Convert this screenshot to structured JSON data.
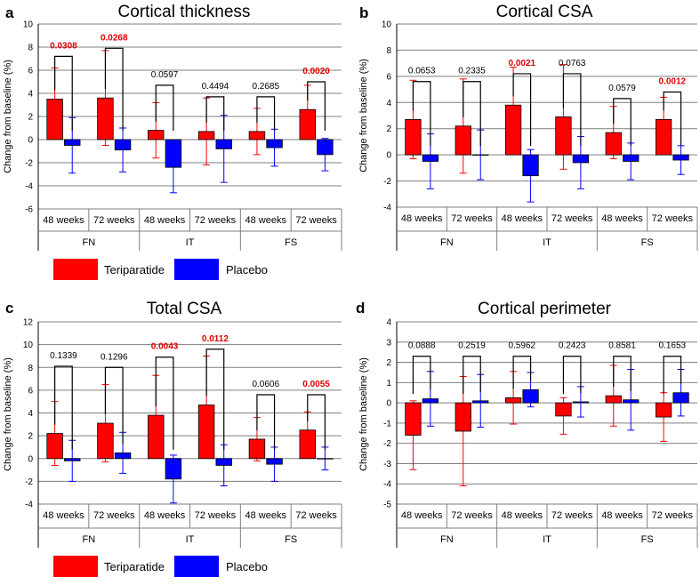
{
  "colors": {
    "teriparatide": "#ff0000",
    "placebo": "#0000ff",
    "significant_p": "#e00000",
    "grid": "#7f7f7f"
  },
  "legend": {
    "teriparatide": "Teriparatide",
    "placebo": "Placebo"
  },
  "chart_data": [
    {
      "panel": "a",
      "type": "bar",
      "title": "Cortical thickness",
      "ylabel": "Change from baseline (%)",
      "ylim": [
        -6,
        10
      ],
      "ystep": 2,
      "yticks": [
        "-6",
        "-4",
        "-2",
        "0",
        "2",
        "4",
        "6",
        "8",
        "10"
      ],
      "categories": [
        "48 weeks",
        "72 weeks",
        "48 weeks",
        "72 weeks",
        "48 weeks",
        "72 weeks"
      ],
      "groups": [
        "FN",
        "IT",
        "FS"
      ],
      "series": [
        {
          "name": "Teriparatide",
          "values": [
            3.5,
            3.6,
            0.8,
            0.7,
            0.7,
            2.6
          ],
          "err": [
            2.7,
            4.1,
            2.4,
            2.9,
            2.0,
            2.1
          ]
        },
        {
          "name": "Placebo",
          "values": [
            -0.5,
            -0.9,
            -2.4,
            -0.8,
            -0.7,
            -1.3
          ],
          "err": [
            2.4,
            1.9,
            2.2,
            2.9,
            1.6,
            1.4
          ]
        }
      ],
      "p_values": [
        "0.0308",
        "0.0268",
        "0.0597",
        "0.4494",
        "0.2685",
        "0.0020"
      ],
      "significant": [
        true,
        true,
        false,
        false,
        false,
        true
      ],
      "bracket_top": [
        7.2,
        7.9,
        4.7,
        3.7,
        3.7,
        5.0
      ]
    },
    {
      "panel": "b",
      "type": "bar",
      "title": "Cortical CSA",
      "ylabel": "Change from baseline (%)",
      "ylim": [
        -4,
        10
      ],
      "ystep": 2,
      "yticks": [
        "-4",
        "-2",
        "0",
        "2",
        "4",
        "6",
        "8",
        "10"
      ],
      "categories": [
        "48 weeks",
        "72 weeks",
        "48 weeks",
        "72 weeks",
        "48 weeks",
        "72 weeks"
      ],
      "groups": [
        "FN",
        "IT",
        "FS"
      ],
      "series": [
        {
          "name": "Teriparatide",
          "values": [
            2.7,
            2.2,
            3.8,
            2.9,
            1.7,
            2.7
          ],
          "err": [
            3.0,
            3.6,
            2.9,
            4.0,
            2.0,
            1.7
          ]
        },
        {
          "name": "Placebo",
          "values": [
            -0.5,
            0.0,
            -1.6,
            -0.6,
            -0.5,
            -0.4
          ],
          "err": [
            2.1,
            1.9,
            2.0,
            2.0,
            1.4,
            1.1
          ]
        }
      ],
      "p_values": [
        "0.0653",
        "0.2335",
        "0.0021",
        "0.0763",
        "0.0579",
        "0.0012"
      ],
      "significant": [
        false,
        false,
        true,
        false,
        false,
        true
      ],
      "bracket_top": [
        5.6,
        5.6,
        6.2,
        6.2,
        4.3,
        4.8
      ]
    },
    {
      "panel": "c",
      "type": "bar",
      "title": "Total CSA",
      "ylabel": "Change from baseline (%)",
      "ylim": [
        -4,
        12
      ],
      "ystep": 2,
      "yticks": [
        "-4",
        "-2",
        "0",
        "2",
        "4",
        "6",
        "8",
        "10",
        "12"
      ],
      "categories": [
        "48 weeks",
        "72 weeks",
        "48 weeks",
        "72 weeks",
        "48 weeks",
        "72 weeks"
      ],
      "groups": [
        "FN",
        "IT",
        "FS"
      ],
      "series": [
        {
          "name": "Teriparatide",
          "values": [
            2.2,
            3.1,
            3.8,
            4.7,
            1.7,
            2.5
          ],
          "err": [
            2.8,
            3.4,
            3.5,
            4.3,
            1.9,
            1.6
          ]
        },
        {
          "name": "Placebo",
          "values": [
            -0.2,
            0.5,
            -1.8,
            -0.6,
            -0.5,
            0.0
          ],
          "err": [
            1.8,
            1.8,
            2.1,
            1.8,
            1.5,
            1.0
          ]
        }
      ],
      "p_values": [
        "0.1339",
        "0.1296",
        "0.0043",
        "0.0112",
        "0.0606",
        "0.0055"
      ],
      "significant": [
        false,
        false,
        true,
        true,
        false,
        true
      ],
      "bracket_top": [
        8.1,
        8.0,
        8.9,
        9.6,
        5.6,
        5.6
      ]
    },
    {
      "panel": "d",
      "type": "bar",
      "title": "Cortical perimeter",
      "ylabel": "Change from baseline (%)",
      "ylim": [
        -5,
        4
      ],
      "ystep": 1,
      "yticks": [
        "-5",
        "-4",
        "-3",
        "-2",
        "-1",
        "0",
        "1",
        "2",
        "3",
        "4"
      ],
      "categories": [
        "48 weeks",
        "72 weeks",
        "48 weeks",
        "72 weeks",
        "48 weeks",
        "72 weeks"
      ],
      "groups": [
        "FN",
        "IT",
        "FS"
      ],
      "series": [
        {
          "name": "Teriparatide",
          "values": [
            -1.6,
            -1.4,
            0.25,
            -0.65,
            0.35,
            -0.7
          ],
          "err": [
            1.7,
            2.7,
            1.3,
            0.9,
            1.5,
            1.2
          ]
        },
        {
          "name": "Placebo",
          "values": [
            0.2,
            0.1,
            0.65,
            0.05,
            0.15,
            0.5
          ],
          "err": [
            1.35,
            1.3,
            0.85,
            0.75,
            1.5,
            1.15
          ]
        }
      ],
      "p_values": [
        "0.0888",
        "0.2519",
        "0.5962",
        "0.2423",
        "0.8581",
        "0.1653"
      ],
      "significant": [
        false,
        false,
        false,
        false,
        false,
        false
      ],
      "bracket_top": [
        2.3,
        2.3,
        2.3,
        2.3,
        2.3,
        2.3
      ]
    }
  ]
}
